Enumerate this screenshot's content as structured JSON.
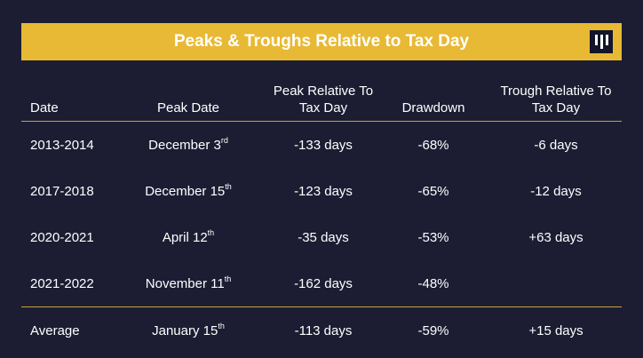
{
  "banner": {
    "title": "Peaks & Troughs Relative to Tax Day"
  },
  "table": {
    "headers": [
      "Date",
      "Peak Date",
      "Peak Relative To Tax Day",
      "Drawdown",
      "Trough Relative To Tax Day"
    ],
    "rows": [
      {
        "date": "2013-2014",
        "peak_date": "December 3",
        "peak_sup": "rd",
        "peak_rel": "-133 days",
        "drawdown": "-68%",
        "trough_rel": "-6 days"
      },
      {
        "date": "2017-2018",
        "peak_date": "December 15",
        "peak_sup": "th",
        "peak_rel": "-123 days",
        "drawdown": "-65%",
        "trough_rel": "-12 days"
      },
      {
        "date": "2020-2021",
        "peak_date": "April 12",
        "peak_sup": "th",
        "peak_rel": "-35 days",
        "drawdown": "-53%",
        "trough_rel": "+63 days"
      },
      {
        "date": "2021-2022",
        "peak_date": "November 11",
        "peak_sup": "th",
        "peak_rel": "-162 days",
        "drawdown": "-48%",
        "trough_rel": ""
      }
    ],
    "average": {
      "date": "Average",
      "peak_date": "January 15",
      "peak_sup": "th",
      "peak_rel": "-113 days",
      "drawdown": "-59%",
      "trough_rel": "+15 days"
    }
  },
  "colors": {
    "background": "#1c1d33",
    "accent": "#e8b934",
    "text": "#ffffff"
  },
  "icons": {
    "logo": "bars-logo-icon"
  }
}
